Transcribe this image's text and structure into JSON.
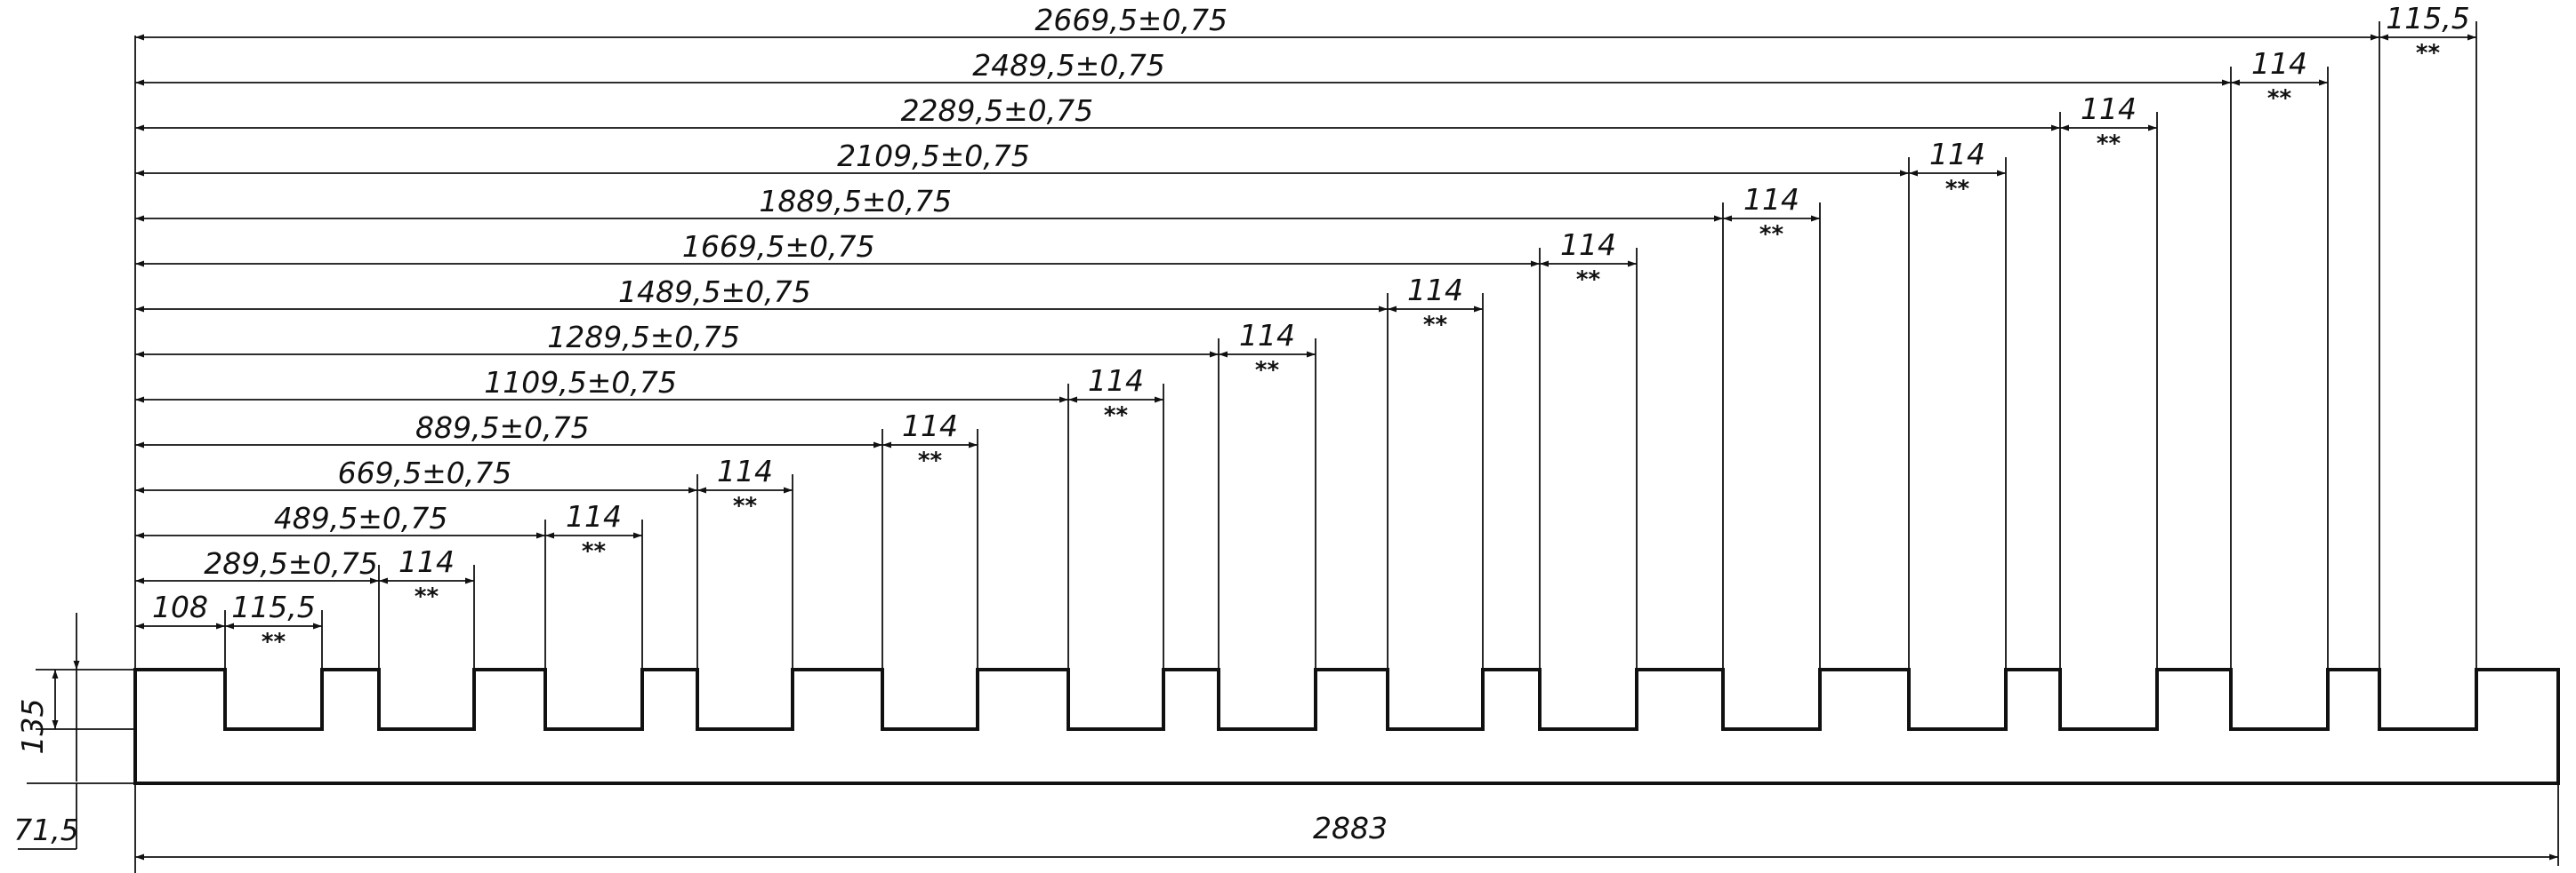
{
  "drawing": {
    "overall_length": "2883",
    "height_left": "135",
    "bottom_offset": "71,5",
    "first_offset": "108",
    "first_width": "115,5",
    "last_width": "115,5",
    "mid_width": "114",
    "width_note": "**",
    "slot_positions": [
      "289,5±0,75",
      "489,5±0,75",
      "669,5±0,75",
      "889,5±0,75",
      "1109,5±0,75",
      "1289,5±0,75",
      "1489,5±0,75",
      "1669,5±0,75",
      "1889,5±0,75",
      "2109,5±0,75",
      "2289,5±0,75",
      "2489,5±0,75",
      "2669,5±0,75"
    ]
  }
}
